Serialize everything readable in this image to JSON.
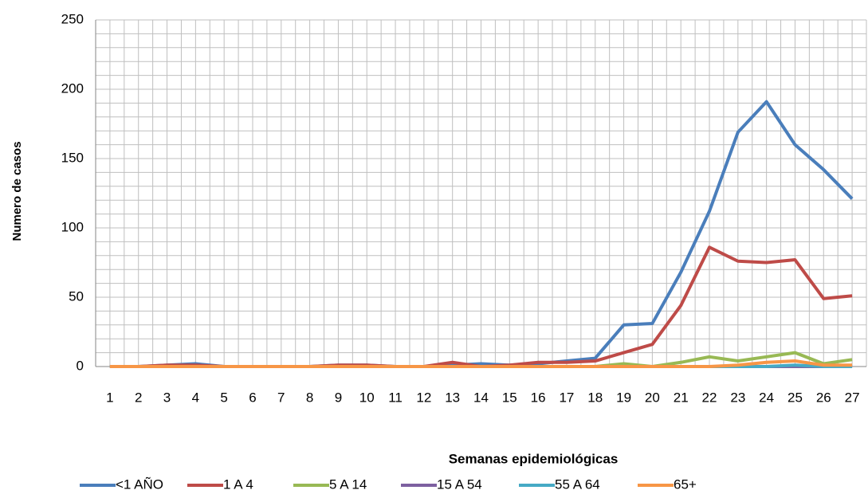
{
  "chart_data": {
    "type": "line",
    "x_label": "Semanas epidemiológicas",
    "y_label": "Numero de casos",
    "categories": [
      "1",
      "2",
      "3",
      "4",
      "5",
      "6",
      "7",
      "8",
      "9",
      "10",
      "11",
      "12",
      "13",
      "14",
      "15",
      "16",
      "17",
      "18",
      "19",
      "20",
      "21",
      "22",
      "23",
      "24",
      "25",
      "26",
      "27"
    ],
    "ylim": [
      0,
      250
    ],
    "yticks": [
      0,
      50,
      100,
      150,
      200,
      250
    ],
    "grid": true,
    "series": [
      {
        "name": "<1 AÑO",
        "color": "#4a7ebb",
        "values": [
          0,
          0,
          1,
          2,
          0,
          0,
          0,
          0,
          1,
          1,
          0,
          0,
          1,
          2,
          1,
          2,
          4,
          6,
          30,
          31,
          68,
          112,
          169,
          191,
          160,
          142,
          121
        ]
      },
      {
        "name": "1 A 4",
        "color": "#be4b48",
        "values": [
          0,
          0,
          1,
          1,
          0,
          0,
          0,
          0,
          1,
          1,
          0,
          0,
          3,
          0,
          1,
          3,
          3,
          4,
          10,
          16,
          44,
          86,
          76,
          75,
          77,
          49,
          51
        ]
      },
      {
        "name": "5 A 14",
        "color": "#98b954",
        "values": [
          0,
          0,
          0,
          0,
          0,
          0,
          0,
          0,
          0,
          0,
          0,
          0,
          0,
          0,
          0,
          0,
          0,
          0,
          2,
          0,
          3,
          7,
          4,
          7,
          10,
          2,
          5
        ]
      },
      {
        "name": "15 A 54",
        "color": "#7d60a0",
        "values": [
          0,
          0,
          0,
          0,
          0,
          0,
          0,
          0,
          0,
          0,
          0,
          0,
          0,
          0,
          0,
          0,
          0,
          0,
          0,
          0,
          0,
          0,
          0,
          0,
          0,
          0,
          0
        ]
      },
      {
        "name": "55 A 64",
        "color": "#46aac5",
        "values": [
          0,
          0,
          0,
          0,
          0,
          0,
          0,
          0,
          0,
          0,
          0,
          0,
          0,
          0,
          0,
          0,
          0,
          0,
          0,
          0,
          0,
          0,
          0,
          0,
          1,
          0,
          0
        ]
      },
      {
        "name": "65+",
        "color": "#f79646",
        "values": [
          0,
          0,
          0,
          0,
          0,
          0,
          0,
          0,
          0,
          0,
          0,
          0,
          0,
          0,
          0,
          0,
          0,
          0,
          0,
          0,
          0,
          0,
          1,
          3,
          4,
          1,
          1
        ]
      }
    ]
  }
}
